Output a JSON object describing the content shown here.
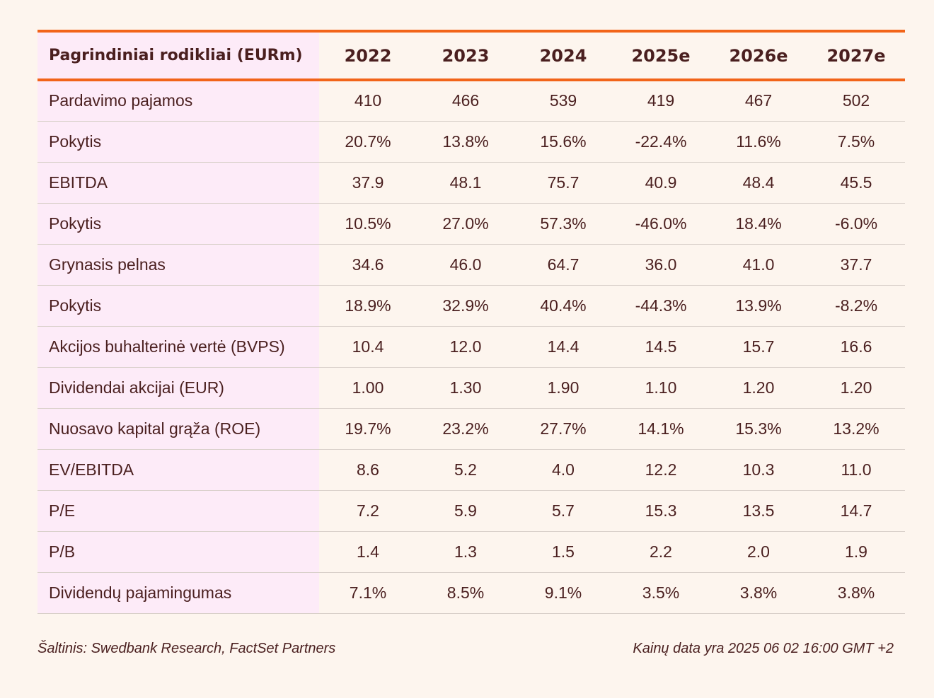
{
  "table": {
    "header_label": "Pagrindiniai rodikliai (EURm)",
    "years": [
      "2022",
      "2023",
      "2024",
      "2025e",
      "2026e",
      "2027e"
    ],
    "rows": [
      {
        "label": "Pardavimo pajamos",
        "values": [
          "410",
          "466",
          "539",
          "419",
          "467",
          "502"
        ]
      },
      {
        "label": "Pokytis",
        "values": [
          "20.7%",
          "13.8%",
          "15.6%",
          "-22.4%",
          "11.6%",
          "7.5%"
        ]
      },
      {
        "label": "EBITDA",
        "values": [
          "37.9",
          "48.1",
          "75.7",
          "40.9",
          "48.4",
          "45.5"
        ]
      },
      {
        "label": "Pokytis",
        "values": [
          "10.5%",
          "27.0%",
          "57.3%",
          "-46.0%",
          "18.4%",
          "-6.0%"
        ]
      },
      {
        "label": "Grynasis pelnas",
        "values": [
          "34.6",
          "46.0",
          "64.7",
          "36.0",
          "41.0",
          "37.7"
        ]
      },
      {
        "label": "Pokytis",
        "values": [
          "18.9%",
          "32.9%",
          "40.4%",
          "-44.3%",
          "13.9%",
          "-8.2%"
        ]
      },
      {
        "label": "Akcijos buhalterinė vertė (BVPS)",
        "values": [
          "10.4",
          "12.0",
          "14.4",
          "14.5",
          "15.7",
          "16.6"
        ]
      },
      {
        "label": "Dividendai akcijai (EUR)",
        "values": [
          "1.00",
          "1.30",
          "1.90",
          "1.10",
          "1.20",
          "1.20"
        ]
      },
      {
        "label": "Nuosavo kapital grąža (ROE)",
        "values": [
          "19.7%",
          "23.2%",
          "27.7%",
          "14.1%",
          "15.3%",
          "13.2%"
        ]
      },
      {
        "label": "EV/EBITDA",
        "values": [
          "8.6",
          "5.2",
          "4.0",
          "12.2",
          "10.3",
          "11.0"
        ]
      },
      {
        "label": "P/E",
        "values": [
          "7.2",
          "5.9",
          "5.7",
          "15.3",
          "13.5",
          "14.7"
        ]
      },
      {
        "label": "P/B",
        "values": [
          "1.4",
          "1.3",
          "1.5",
          "2.2",
          "2.0",
          "1.9"
        ]
      },
      {
        "label": "Dividendų pajamingumas",
        "values": [
          "7.1%",
          "8.5%",
          "9.1%",
          "3.5%",
          "3.8%",
          "3.8%"
        ]
      }
    ]
  },
  "footer": {
    "source": "Šaltinis: Swedbank Research, FactSet Partners",
    "price_date": "Kainų data yra 2025 06 02 16:00 GMT +2"
  },
  "colors": {
    "accent": "#f26419",
    "label_bg": "#fdebf8",
    "page_bg": "#fdf5ee",
    "text": "#4a1f1f"
  }
}
